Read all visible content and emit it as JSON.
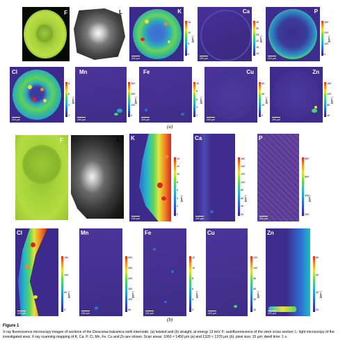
{
  "figure": {
    "title": "Figure 1",
    "caption_parts": [
      {
        "text": "X-ray fluorescence microscopy images of sections of the ",
        "style": "normal"
      },
      {
        "text": "Dioscorea balcanica",
        "style": "italic"
      },
      {
        "text": " sixth internode, (",
        "style": "normal"
      },
      {
        "text": "a",
        "style": "italic"
      },
      {
        "text": ") twisted and (",
        "style": "normal"
      },
      {
        "text": "b",
        "style": "italic"
      },
      {
        "text": ") straight, at energy 13 keV. F: autofluorescence of the stem cross section; L: light microscopy of the investigated area. X-ray scanning mapping of K, Ca, P, Cl, Mn, Fe, Cu and Zn are shown. Scan areas: 1060 × 1450 μm (",
        "style": "normal"
      },
      {
        "text": "a",
        "style": "italic"
      },
      {
        "text": ") and 1320 × 1370 μm (",
        "style": "normal"
      },
      {
        "text": "b",
        "style": "italic"
      },
      {
        "text": "); pixel size: 15 μm; dwell time: 1 s.",
        "style": "normal"
      }
    ]
  },
  "section_a": {
    "label": "(a)",
    "scale_label": "200 μm",
    "unit_label": "[ppm]",
    "panels": [
      {
        "tag": "F",
        "kind": "fluor",
        "colorbar_ticks": []
      },
      {
        "tag": "L",
        "kind": "light",
        "colorbar_ticks": []
      },
      {
        "tag": "K",
        "kind": "map",
        "style": "ring",
        "colorbar_ticks": [
          "15",
          "10",
          "5",
          "0"
        ]
      },
      {
        "tag": "Ca",
        "kind": "map",
        "style": "low",
        "colorbar_ticks": [
          "35",
          "30",
          "25",
          "20",
          "15",
          "10"
        ]
      },
      {
        "tag": "P",
        "kind": "map",
        "style": "ring",
        "colorbar_ticks": [
          "300",
          "200",
          "100",
          "0"
        ]
      },
      {
        "tag": "Cl",
        "kind": "map",
        "style": "ring",
        "colorbar_ticks": [
          "8",
          "6",
          "4",
          "2"
        ]
      },
      {
        "tag": "Mn",
        "kind": "map",
        "style": "low",
        "colorbar_ticks": [
          "300",
          "200",
          "100",
          "0"
        ]
      },
      {
        "tag": "Fe",
        "kind": "map",
        "style": "low",
        "colorbar_ticks": [
          "10",
          "8",
          "6",
          "4",
          "2"
        ]
      },
      {
        "tag": "Cu",
        "kind": "map",
        "style": "low",
        "colorbar_ticks": [
          "60",
          "40",
          "20",
          "0"
        ]
      },
      {
        "tag": "Zn",
        "kind": "map",
        "style": "low",
        "colorbar_ticks": [
          "160",
          "120",
          "80",
          "40"
        ]
      }
    ]
  },
  "section_b": {
    "label": "(b)",
    "scale_label": "200 μm",
    "unit_label": "[ppm]",
    "panels": [
      {
        "tag": "F",
        "kind": "fluor",
        "colorbar_ticks": []
      },
      {
        "tag": "L",
        "kind": "light",
        "colorbar_ticks": []
      },
      {
        "tag": "K",
        "kind": "map",
        "style": "edge",
        "colorbar_ticks": [
          "14",
          "12",
          "10",
          "8",
          "6",
          "4",
          "2",
          "0"
        ]
      },
      {
        "tag": "Ca",
        "kind": "map",
        "style": "low",
        "colorbar_ticks": [
          "160",
          "140",
          "120",
          "100",
          "80",
          "60",
          "40",
          "20"
        ]
      },
      {
        "tag": "P",
        "kind": "map",
        "style": "noise",
        "colorbar_ticks": [
          "800",
          "600",
          "400",
          "200"
        ]
      },
      {
        "tag": "Cl",
        "kind": "map",
        "style": "edge",
        "colorbar_ticks": [
          "150",
          "100",
          "50",
          "0"
        ]
      },
      {
        "tag": "Mn",
        "kind": "map",
        "style": "low",
        "colorbar_ticks": [
          "300",
          "250",
          "200",
          "150",
          "100",
          "50"
        ]
      },
      {
        "tag": "Fe",
        "kind": "map",
        "style": "low",
        "colorbar_ticks": [
          "12",
          "10",
          "8",
          "6",
          "4",
          "2"
        ]
      },
      {
        "tag": "Cu",
        "kind": "map",
        "style": "low",
        "colorbar_ticks": [
          "120",
          "100",
          "80",
          "60",
          "40",
          "20"
        ]
      },
      {
        "tag": "Zn",
        "kind": "map",
        "style": "zn",
        "colorbar_ticks": [
          "80",
          "60",
          "40",
          "20"
        ]
      }
    ]
  }
}
